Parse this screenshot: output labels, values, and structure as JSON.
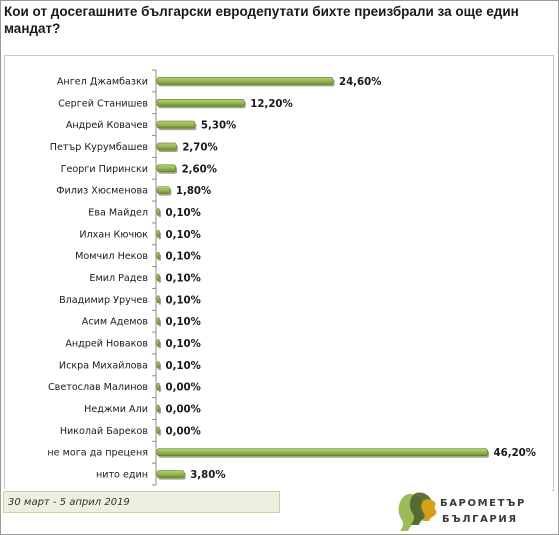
{
  "title": "Кои от досегашните български евродепутати бихте преизбрали за още един мандат?",
  "date_range": "30 март - 5 април 2019",
  "logo": {
    "line1": "БАРОМЕТЪР",
    "line2": "БЪЛГАРИЯ"
  },
  "colors": {
    "bar": "#8fb04a",
    "bar_edge": "#5f7e25",
    "accent_green": "#9bbb59"
  },
  "chart_data": {
    "type": "bar",
    "orientation": "horizontal",
    "categories": [
      "Ангел Джамбазки",
      "Сергей Станишев",
      "Андрей Ковачев",
      "Петър Курумбашев",
      "Георги Пирински",
      "Филиз Хюсменова",
      "Ева Майдел",
      "Илхан Кючюк",
      "Момчил Неков",
      "Емил Радев",
      "Владимир Уручев",
      "Асим Адемов",
      "Андрей Новаков",
      "Искра Михайлова",
      "Светослав Малинов",
      "Неджми Али",
      "Николай Бареков",
      "не мога да преценя",
      "нито един"
    ],
    "values": [
      24.6,
      12.2,
      5.3,
      2.7,
      2.6,
      1.8,
      0.1,
      0.1,
      0.1,
      0.1,
      0.1,
      0.1,
      0.1,
      0.1,
      0.0,
      0.0,
      0.0,
      46.2,
      3.8
    ],
    "value_labels": [
      "24,60%",
      "12,20%",
      "5,30%",
      "2,70%",
      "2,60%",
      "1,80%",
      "0,10%",
      "0,10%",
      "0,10%",
      "0,10%",
      "0,10%",
      "0,10%",
      "0,10%",
      "0,10%",
      "0,00%",
      "0,00%",
      "0,00%",
      "46,20%",
      "3,80%"
    ],
    "xlim": [
      0,
      50
    ],
    "grid": false,
    "legend": "none"
  }
}
